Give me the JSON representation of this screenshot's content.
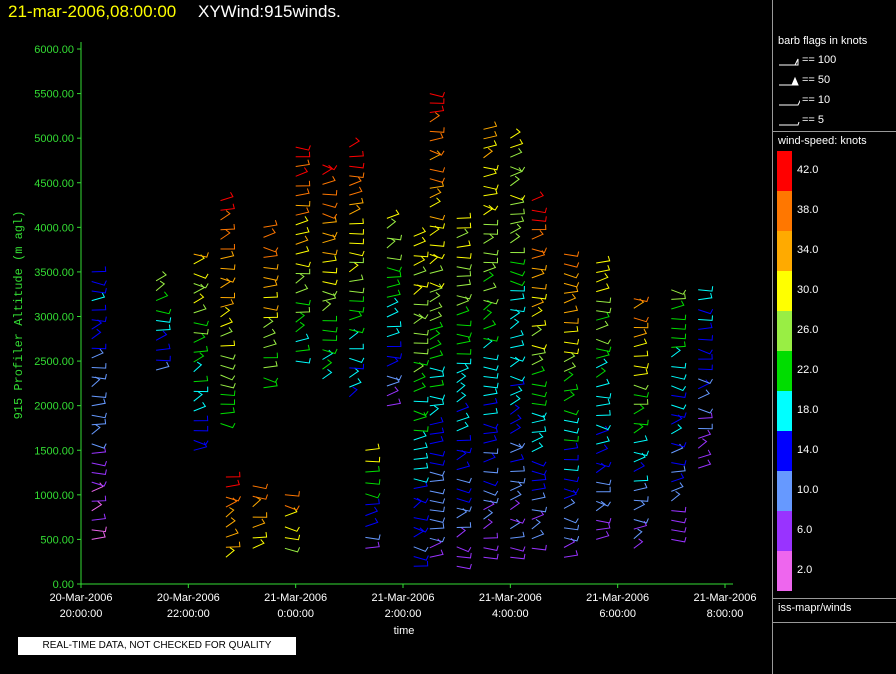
{
  "header": {
    "date_time": "21-mar-2006,08:00:00",
    "product": "XYWind:915winds."
  },
  "notice": "REAL-TIME DATA, NOT CHECKED FOR QUALITY",
  "legend": {
    "flags_title": "barb flags in knots",
    "flags": [
      "== 100",
      "== 50",
      "== 10",
      "== 5"
    ],
    "speed_title": "wind-speed: knots",
    "colorbar": [
      {
        "label": "42.0",
        "color": "#ff0000"
      },
      {
        "label": "38.0",
        "color": "#ff7700"
      },
      {
        "label": "34.0",
        "color": "#ffaa00"
      },
      {
        "label": "30.0",
        "color": "#ffff00"
      },
      {
        "label": "26.0",
        "color": "#99ee44"
      },
      {
        "label": "22.0",
        "color": "#00dd00"
      },
      {
        "label": "18.0",
        "color": "#00ffff"
      },
      {
        "label": "14.0",
        "color": "#0000ff"
      },
      {
        "label": "10.0",
        "color": "#6699ff"
      },
      {
        "label": "6.0",
        "color": "#9933ff"
      },
      {
        "label": "2.0",
        "color": "#ee66ee"
      }
    ],
    "source": "iss-mapr/winds"
  },
  "chart_data": {
    "type": "scatter",
    "mark": "wind-barb",
    "ylabel": "915 Profiler Altitude (m agl)",
    "xlabel": "time",
    "ylim": [
      0,
      6000
    ],
    "y_ticks": [
      "0.00",
      "500.00",
      "1000.00",
      "1500.00",
      "2000.00",
      "2500.00",
      "3000.00",
      "3500.00",
      "4000.00",
      "4500.00",
      "5000.00",
      "5500.00",
      "6000.00"
    ],
    "x_ticks": [
      {
        "date": "20-Mar-2006",
        "time": "20:00:00"
      },
      {
        "date": "20-Mar-2006",
        "time": "22:00:00"
      },
      {
        "date": "21-Mar-2006",
        "time": "0:00:00"
      },
      {
        "date": "21-Mar-2006",
        "time": "2:00:00"
      },
      {
        "date": "21-Mar-2006",
        "time": "4:00:00"
      },
      {
        "date": "21-Mar-2006",
        "time": "6:00:00"
      },
      {
        "date": "21-Mar-2006",
        "time": "8:00:00"
      }
    ],
    "xlim_hours": [
      20.0,
      32.0
    ],
    "profiles": [
      {
        "t": 20.2,
        "alt": [
          500,
          3500
        ],
        "speed": [
          [
            4,
            8
          ],
          [
            8,
            12
          ],
          [
            12,
            16
          ]
        ]
      },
      {
        "t": 21.4,
        "alt": [
          2400,
          3400
        ],
        "speed": [
          [
            10,
            26
          ]
        ]
      },
      {
        "t": 22.1,
        "alt": [
          1500,
          3700
        ],
        "speed": [
          [
            14,
            32
          ]
        ]
      },
      {
        "t": 22.6,
        "alt": [
          1800,
          4300
        ],
        "speed": [
          [
            22,
            42
          ]
        ]
      },
      {
        "t": 22.7,
        "alt": [
          300,
          1200
        ],
        "speed": [
          [
            30,
            40
          ]
        ]
      },
      {
        "t": 23.2,
        "alt": [
          400,
          1100
        ],
        "speed": [
          [
            30,
            38
          ]
        ]
      },
      {
        "t": 23.4,
        "alt": [
          2200,
          4000
        ],
        "speed": [
          [
            22,
            40
          ]
        ]
      },
      {
        "t": 23.8,
        "alt": [
          400,
          1000
        ],
        "speed": [
          [
            26,
            38
          ]
        ]
      },
      {
        "t": 24.0,
        "alt": [
          2500,
          4900
        ],
        "speed": [
          [
            18,
            42
          ]
        ]
      },
      {
        "t": 24.5,
        "alt": [
          2300,
          4700
        ],
        "speed": [
          [
            18,
            42
          ]
        ]
      },
      {
        "t": 25.0,
        "alt": [
          2100,
          4900
        ],
        "speed": [
          [
            14,
            42
          ]
        ]
      },
      {
        "t": 25.3,
        "alt": [
          400,
          1500
        ],
        "speed": [
          [
            6,
            30
          ]
        ]
      },
      {
        "t": 25.7,
        "alt": [
          2000,
          4100
        ],
        "speed": [
          [
            6,
            30
          ]
        ]
      },
      {
        "t": 26.2,
        "alt": [
          200,
          3900
        ],
        "speed": [
          [
            12,
            30
          ]
        ]
      },
      {
        "t": 26.5,
        "alt": [
          300,
          5500
        ],
        "speed": [
          [
            6,
            42
          ]
        ]
      },
      {
        "t": 27.0,
        "alt": [
          200,
          4100
        ],
        "speed": [
          [
            6,
            30
          ]
        ]
      },
      {
        "t": 27.5,
        "alt": [
          300,
          5100
        ],
        "speed": [
          [
            6,
            34
          ]
        ]
      },
      {
        "t": 28.0,
        "alt": [
          300,
          5000
        ],
        "speed": [
          [
            6,
            30
          ]
        ]
      },
      {
        "t": 28.4,
        "alt": [
          400,
          4300
        ],
        "speed": [
          [
            6,
            42
          ]
        ]
      },
      {
        "t": 29.0,
        "alt": [
          300,
          3700
        ],
        "speed": [
          [
            6,
            38
          ]
        ]
      },
      {
        "t": 29.6,
        "alt": [
          500,
          3600
        ],
        "speed": [
          [
            6,
            30
          ]
        ]
      },
      {
        "t": 30.3,
        "alt": [
          400,
          3200
        ],
        "speed": [
          [
            6,
            38
          ]
        ]
      },
      {
        "t": 31.0,
        "alt": [
          500,
          3300
        ],
        "speed": [
          [
            6,
            26
          ]
        ]
      },
      {
        "t": 31.5,
        "alt": [
          1300,
          3300
        ],
        "speed": [
          [
            6,
            18
          ]
        ]
      }
    ]
  }
}
